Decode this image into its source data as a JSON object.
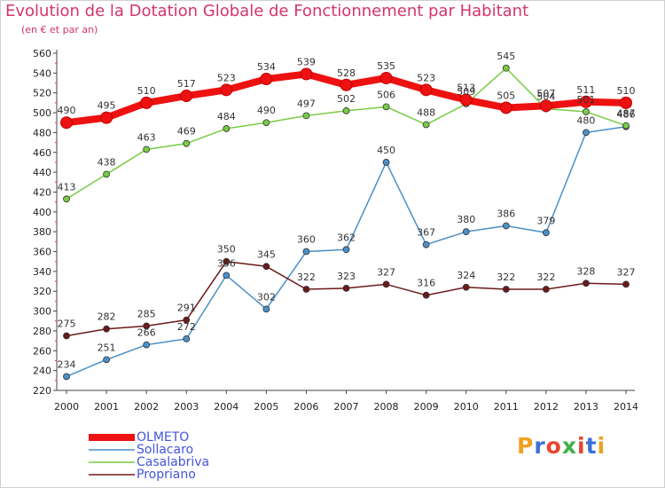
{
  "header": {
    "title": "Evolution de la Dotation Globale de Fonctionnement par Habitant",
    "subtitle": "(en € et par an)"
  },
  "brand": {
    "letters": [
      "P",
      "r",
      "o",
      "x",
      "i",
      "t",
      "i"
    ],
    "colors": [
      "#f0a020",
      "#3b6fd8",
      "#e8452c",
      "#3fb04a",
      "#e8452c",
      "#3b6fd8",
      "#f0a020"
    ]
  },
  "chart_data": {
    "type": "line",
    "title": "Evolution de la Dotation Globale de Fonctionnement par Habitant",
    "subtitle": "(en € et par an)",
    "xlabel": "",
    "ylabel": "",
    "x": [
      2000,
      2001,
      2002,
      2003,
      2004,
      2005,
      2006,
      2007,
      2008,
      2009,
      2010,
      2011,
      2012,
      2013,
      2014
    ],
    "ylim": [
      220,
      560
    ],
    "yticks": [
      220,
      240,
      260,
      280,
      300,
      320,
      340,
      360,
      380,
      400,
      420,
      440,
      460,
      480,
      500,
      520,
      540,
      560
    ],
    "grid": false,
    "legend_position": "bottom-left",
    "series": [
      {
        "name": "OLMETO",
        "color": "#ee1111",
        "bold": true,
        "values": [
          490,
          495,
          510,
          517,
          523,
          534,
          539,
          528,
          535,
          523,
          513,
          505,
          507,
          511,
          510
        ]
      },
      {
        "name": "Sollacaro",
        "color": "#4a90c8",
        "bold": false,
        "values": [
          234,
          251,
          266,
          272,
          336,
          302,
          360,
          362,
          450,
          367,
          380,
          386,
          379,
          480,
          486
        ]
      },
      {
        "name": "Casalabriva",
        "color": "#77cc44",
        "bold": false,
        "values": [
          413,
          438,
          463,
          469,
          484,
          490,
          497,
          502,
          506,
          488,
          509,
          545,
          504,
          501,
          487
        ]
      },
      {
        "name": "Propriano",
        "color": "#6b1a1a",
        "bold": false,
        "values": [
          275,
          282,
          285,
          291,
          350,
          345,
          322,
          323,
          327,
          316,
          324,
          322,
          322,
          328,
          327
        ]
      }
    ]
  }
}
